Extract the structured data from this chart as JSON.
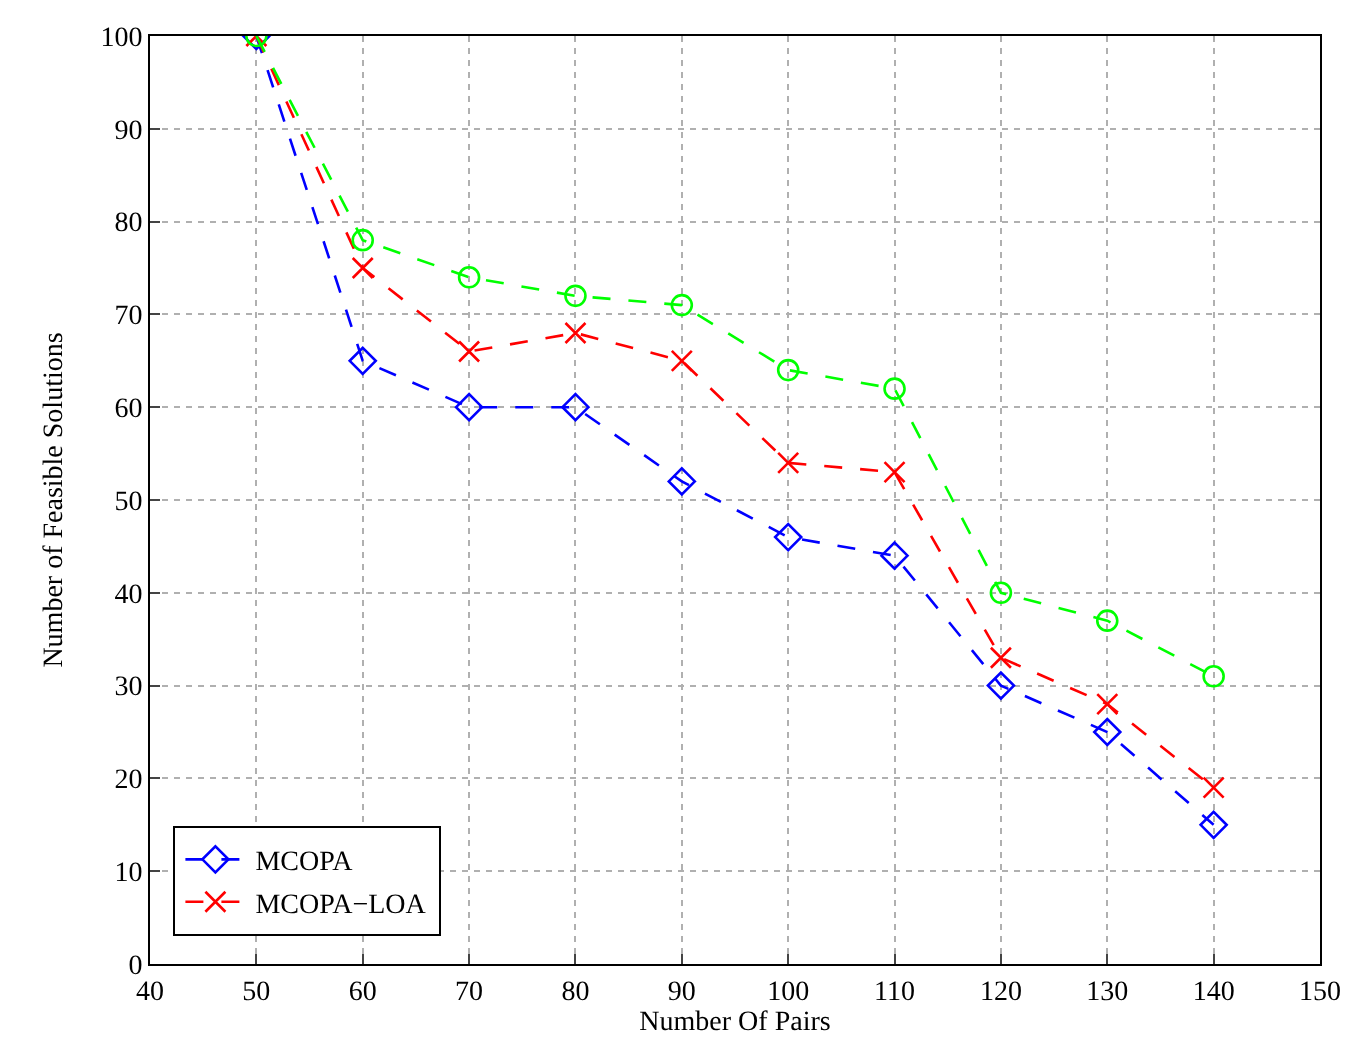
{
  "chart_data": {
    "type": "line",
    "xlabel": "Number Of Pairs",
    "ylabel": "Number of Feasible Solutions",
    "x": [
      50,
      60,
      70,
      80,
      90,
      100,
      110,
      120,
      130,
      140
    ],
    "series": [
      {
        "name": "MCOPA",
        "color": "#0000ff",
        "marker": "diamond",
        "values": [
          100,
          65,
          60,
          60,
          52,
          46,
          44,
          30,
          25,
          15
        ]
      },
      {
        "name": "MCOPA−LOA",
        "color": "#ff0000",
        "marker": "cross",
        "values": [
          100,
          75,
          66,
          68,
          65,
          54,
          53,
          33,
          28,
          19
        ]
      },
      {
        "color": "#00ff00",
        "marker": "circle",
        "values": [
          100,
          78,
          74,
          72,
          71,
          64,
          62,
          40,
          37,
          31
        ]
      }
    ],
    "xlim": [
      40,
      150
    ],
    "xticks": [
      40,
      50,
      60,
      70,
      80,
      90,
      100,
      110,
      120,
      130,
      140,
      150
    ],
    "ylim": [
      0,
      100
    ],
    "yticks": [
      0,
      10,
      20,
      30,
      40,
      50,
      60,
      70,
      80,
      90,
      100
    ],
    "grid": true,
    "legend": "bottom left",
    "line_style": "dashed"
  }
}
